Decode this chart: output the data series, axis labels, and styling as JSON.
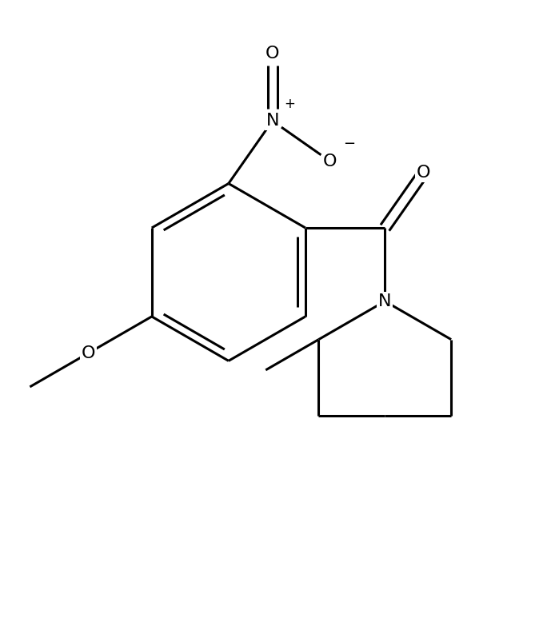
{
  "background_color": "#ffffff",
  "line_color": "#000000",
  "line_width": 2.2,
  "font_size": 15,
  "figsize": [
    6.94,
    7.88
  ],
  "dpi": 100,
  "xlim": [
    0.5,
    9.5
  ],
  "ylim": [
    0.5,
    10.5
  ]
}
